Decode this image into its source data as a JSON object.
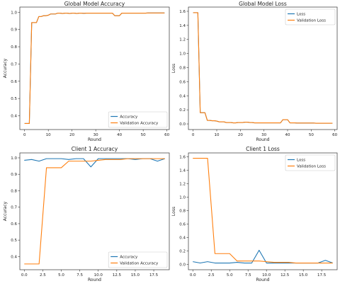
{
  "colors": {
    "series_1": "#1f77b4",
    "series_2": "#ff7f0e"
  },
  "chart_data": [
    {
      "type": "line",
      "title": "Global Model Accuracy",
      "xlabel": "Round",
      "ylabel": "Accuracy",
      "xlim": [
        -2,
        61
      ],
      "ylim": [
        0.32,
        1.03
      ],
      "xticks": [
        0,
        10,
        20,
        30,
        40,
        50,
        60
      ],
      "xtick_labels": [
        "0",
        "10",
        "20",
        "30",
        "40",
        "50",
        "60"
      ],
      "yticks": [
        0.4,
        0.5,
        0.6,
        0.7,
        0.8,
        0.9,
        1.0
      ],
      "ytick_labels": [
        "0.4",
        "0.5",
        "0.6",
        "0.7",
        "0.8",
        "0.9",
        "1.0"
      ],
      "legend_position": "lower-right",
      "series": [
        {
          "name": "Accuracy",
          "color": "series_1",
          "x": [
            0,
            1,
            2,
            3,
            4,
            5,
            6,
            7,
            8,
            9,
            10,
            11,
            12,
            13,
            14,
            15,
            16,
            17,
            18,
            19,
            20,
            21,
            22,
            23,
            24,
            25,
            26,
            27,
            28,
            29,
            30,
            31,
            32,
            33,
            34,
            35,
            36,
            37,
            38,
            39,
            40,
            41,
            42,
            43,
            44,
            45,
            46,
            47,
            48,
            49,
            50,
            51,
            52,
            53,
            54,
            55,
            56,
            57,
            58,
            59
          ],
          "y": [
            0.355,
            0.355,
            0.355,
            0.94,
            0.94,
            0.94,
            0.975,
            0.975,
            0.98,
            0.98,
            0.983,
            0.99,
            0.99,
            0.99,
            0.995,
            0.995,
            0.993,
            0.995,
            0.995,
            0.993,
            0.995,
            0.995,
            0.993,
            0.995,
            0.995,
            0.994,
            0.995,
            0.995,
            0.995,
            0.995,
            0.995,
            0.995,
            0.995,
            0.995,
            0.995,
            0.995,
            0.995,
            0.995,
            0.98,
            0.98,
            0.98,
            0.995,
            0.995,
            0.995,
            0.995,
            0.995,
            0.995,
            0.995,
            0.995,
            0.995,
            0.995,
            0.995,
            0.996,
            0.996,
            0.996,
            0.996,
            0.996,
            0.996,
            0.996,
            0.996
          ]
        },
        {
          "name": "Validation Accuracy",
          "color": "series_2",
          "x": [
            0,
            1,
            2,
            3,
            4,
            5,
            6,
            7,
            8,
            9,
            10,
            11,
            12,
            13,
            14,
            15,
            16,
            17,
            18,
            19,
            20,
            21,
            22,
            23,
            24,
            25,
            26,
            27,
            28,
            29,
            30,
            31,
            32,
            33,
            34,
            35,
            36,
            37,
            38,
            39,
            40,
            41,
            42,
            43,
            44,
            45,
            46,
            47,
            48,
            49,
            50,
            51,
            52,
            53,
            54,
            55,
            56,
            57,
            58,
            59
          ],
          "y": [
            0.355,
            0.355,
            0.355,
            0.94,
            0.94,
            0.94,
            0.975,
            0.975,
            0.98,
            0.98,
            0.983,
            0.99,
            0.99,
            0.99,
            0.995,
            0.995,
            0.993,
            0.995,
            0.995,
            0.993,
            0.995,
            0.995,
            0.993,
            0.995,
            0.995,
            0.994,
            0.995,
            0.995,
            0.995,
            0.995,
            0.995,
            0.995,
            0.995,
            0.995,
            0.995,
            0.995,
            0.995,
            0.995,
            0.98,
            0.98,
            0.98,
            0.995,
            0.995,
            0.995,
            0.995,
            0.995,
            0.995,
            0.995,
            0.995,
            0.995,
            0.995,
            0.995,
            0.996,
            0.996,
            0.996,
            0.996,
            0.996,
            0.996,
            0.996,
            0.996
          ]
        }
      ]
    },
    {
      "type": "line",
      "title": "Global Model Loss",
      "xlabel": "Round",
      "ylabel": "Loss",
      "xlim": [
        -2,
        61
      ],
      "ylim": [
        -0.08,
        1.66
      ],
      "xticks": [
        0,
        10,
        20,
        30,
        40,
        50,
        60
      ],
      "xtick_labels": [
        "0",
        "10",
        "20",
        "30",
        "40",
        "50",
        "60"
      ],
      "yticks": [
        0,
        0.2,
        0.4,
        0.6,
        0.8,
        1.0,
        1.2,
        1.4,
        1.6
      ],
      "ytick_labels": [
        "0.0",
        "0.2",
        "0.4",
        "0.6",
        "0.8",
        "1.0",
        "1.2",
        "1.4",
        "1.6"
      ],
      "legend_position": "upper-right",
      "series": [
        {
          "name": "Loss",
          "color": "series_1",
          "x": [
            0,
            1,
            2,
            3,
            4,
            5,
            6,
            7,
            8,
            9,
            10,
            11,
            12,
            13,
            14,
            15,
            16,
            17,
            18,
            19,
            20,
            21,
            22,
            23,
            24,
            25,
            26,
            27,
            28,
            29,
            30,
            31,
            32,
            33,
            34,
            35,
            36,
            37,
            38,
            39,
            40,
            41,
            42,
            43,
            44,
            45,
            46,
            47,
            48,
            49,
            50,
            51,
            52,
            53,
            54,
            55,
            56,
            57,
            58,
            59
          ],
          "y": [
            1.58,
            1.58,
            1.58,
            0.16,
            0.16,
            0.16,
            0.05,
            0.05,
            0.045,
            0.045,
            0.04,
            0.03,
            0.03,
            0.03,
            0.02,
            0.02,
            0.02,
            0.015,
            0.015,
            0.02,
            0.02,
            0.02,
            0.025,
            0.025,
            0.02,
            0.02,
            0.015,
            0.015,
            0.015,
            0.015,
            0.015,
            0.015,
            0.015,
            0.015,
            0.015,
            0.015,
            0.015,
            0.015,
            0.06,
            0.06,
            0.06,
            0.015,
            0.015,
            0.015,
            0.012,
            0.012,
            0.012,
            0.012,
            0.012,
            0.012,
            0.012,
            0.012,
            0.01,
            0.01,
            0.01,
            0.01,
            0.01,
            0.01,
            0.01,
            0.01
          ]
        },
        {
          "name": "Validation Loss",
          "color": "series_2",
          "x": [
            0,
            1,
            2,
            3,
            4,
            5,
            6,
            7,
            8,
            9,
            10,
            11,
            12,
            13,
            14,
            15,
            16,
            17,
            18,
            19,
            20,
            21,
            22,
            23,
            24,
            25,
            26,
            27,
            28,
            29,
            30,
            31,
            32,
            33,
            34,
            35,
            36,
            37,
            38,
            39,
            40,
            41,
            42,
            43,
            44,
            45,
            46,
            47,
            48,
            49,
            50,
            51,
            52,
            53,
            54,
            55,
            56,
            57,
            58,
            59
          ],
          "y": [
            1.58,
            1.58,
            1.58,
            0.16,
            0.16,
            0.16,
            0.05,
            0.05,
            0.045,
            0.045,
            0.04,
            0.03,
            0.03,
            0.03,
            0.02,
            0.02,
            0.02,
            0.015,
            0.015,
            0.02,
            0.02,
            0.02,
            0.025,
            0.025,
            0.02,
            0.02,
            0.015,
            0.015,
            0.015,
            0.015,
            0.015,
            0.015,
            0.015,
            0.015,
            0.015,
            0.015,
            0.015,
            0.015,
            0.06,
            0.06,
            0.06,
            0.015,
            0.015,
            0.015,
            0.012,
            0.012,
            0.012,
            0.012,
            0.012,
            0.012,
            0.012,
            0.012,
            0.01,
            0.01,
            0.01,
            0.01,
            0.01,
            0.01,
            0.01,
            0.01
          ]
        }
      ]
    },
    {
      "type": "line",
      "title": "Client 1 Accuracy",
      "xlabel": "Round",
      "ylabel": "Accuracy",
      "xlim": [
        -0.6,
        19.6
      ],
      "ylim": [
        0.32,
        1.03
      ],
      "xticks": [
        0,
        2.5,
        5,
        7.5,
        10,
        12.5,
        15,
        17.5
      ],
      "xtick_labels": [
        "0.0",
        "2.5",
        "5.0",
        "7.5",
        "10.0",
        "12.5",
        "15.0",
        "17.5"
      ],
      "yticks": [
        0.4,
        0.5,
        0.6,
        0.7,
        0.8,
        0.9,
        1.0
      ],
      "ytick_labels": [
        "0.4",
        "0.5",
        "0.6",
        "0.7",
        "0.8",
        "0.9",
        "1.0"
      ],
      "legend_position": "lower-right",
      "series": [
        {
          "name": "Accuracy",
          "color": "series_1",
          "x": [
            0,
            1,
            2,
            3,
            4,
            5,
            6,
            7,
            8,
            9,
            10,
            11,
            12,
            13,
            14,
            15,
            16,
            17,
            18,
            19
          ],
          "y": [
            0.985,
            0.99,
            0.98,
            0.995,
            0.995,
            0.995,
            0.99,
            0.995,
            0.995,
            0.945,
            0.995,
            0.995,
            0.995,
            0.995,
            0.995,
            0.99,
            0.995,
            0.995,
            0.98,
            0.995
          ]
        },
        {
          "name": "Validation Accuracy",
          "color": "series_2",
          "x": [
            0,
            1,
            2,
            3,
            4,
            5,
            6,
            7,
            8,
            9,
            10,
            11,
            12,
            13,
            14,
            15,
            16,
            17,
            18,
            19
          ],
          "y": [
            0.355,
            0.355,
            0.355,
            0.94,
            0.94,
            0.94,
            0.98,
            0.98,
            0.98,
            0.98,
            0.985,
            0.99,
            0.99,
            0.99,
            0.995,
            0.995,
            0.995,
            0.995,
            0.995,
            0.995
          ]
        }
      ]
    },
    {
      "type": "line",
      "title": "Client 1 Loss",
      "xlabel": "Round",
      "ylabel": "Loss",
      "xlim": [
        -0.6,
        19.6
      ],
      "ylim": [
        -0.08,
        1.66
      ],
      "xticks": [
        0,
        2.5,
        5,
        7.5,
        10,
        12.5,
        15,
        17.5
      ],
      "xtick_labels": [
        "0.0",
        "2.5",
        "5.0",
        "7.5",
        "10.0",
        "12.5",
        "15.0",
        "17.5"
      ],
      "yticks": [
        0,
        0.2,
        0.4,
        0.6,
        0.8,
        1.0,
        1.2,
        1.4,
        1.6
      ],
      "ytick_labels": [
        "0.0",
        "0.2",
        "0.4",
        "0.6",
        "0.8",
        "1.0",
        "1.2",
        "1.4",
        "1.6"
      ],
      "legend_position": "upper-right",
      "series": [
        {
          "name": "Loss",
          "color": "series_1",
          "x": [
            0,
            1,
            2,
            3,
            4,
            5,
            6,
            7,
            8,
            9,
            10,
            11,
            12,
            13,
            14,
            15,
            16,
            17,
            18,
            19
          ],
          "y": [
            0.04,
            0.02,
            0.04,
            0.02,
            0.02,
            0.02,
            0.03,
            0.02,
            0.02,
            0.21,
            0.02,
            0.02,
            0.02,
            0.02,
            0.02,
            0.02,
            0.02,
            0.02,
            0.06,
            0.02
          ]
        },
        {
          "name": "Validation Loss",
          "color": "series_2",
          "x": [
            0,
            1,
            2,
            3,
            4,
            5,
            6,
            7,
            8,
            9,
            10,
            11,
            12,
            13,
            14,
            15,
            16,
            17,
            18,
            19
          ],
          "y": [
            1.58,
            1.58,
            1.58,
            0.16,
            0.16,
            0.16,
            0.05,
            0.05,
            0.05,
            0.05,
            0.04,
            0.03,
            0.03,
            0.03,
            0.02,
            0.02,
            0.02,
            0.02,
            0.02,
            0.02
          ]
        }
      ]
    }
  ]
}
